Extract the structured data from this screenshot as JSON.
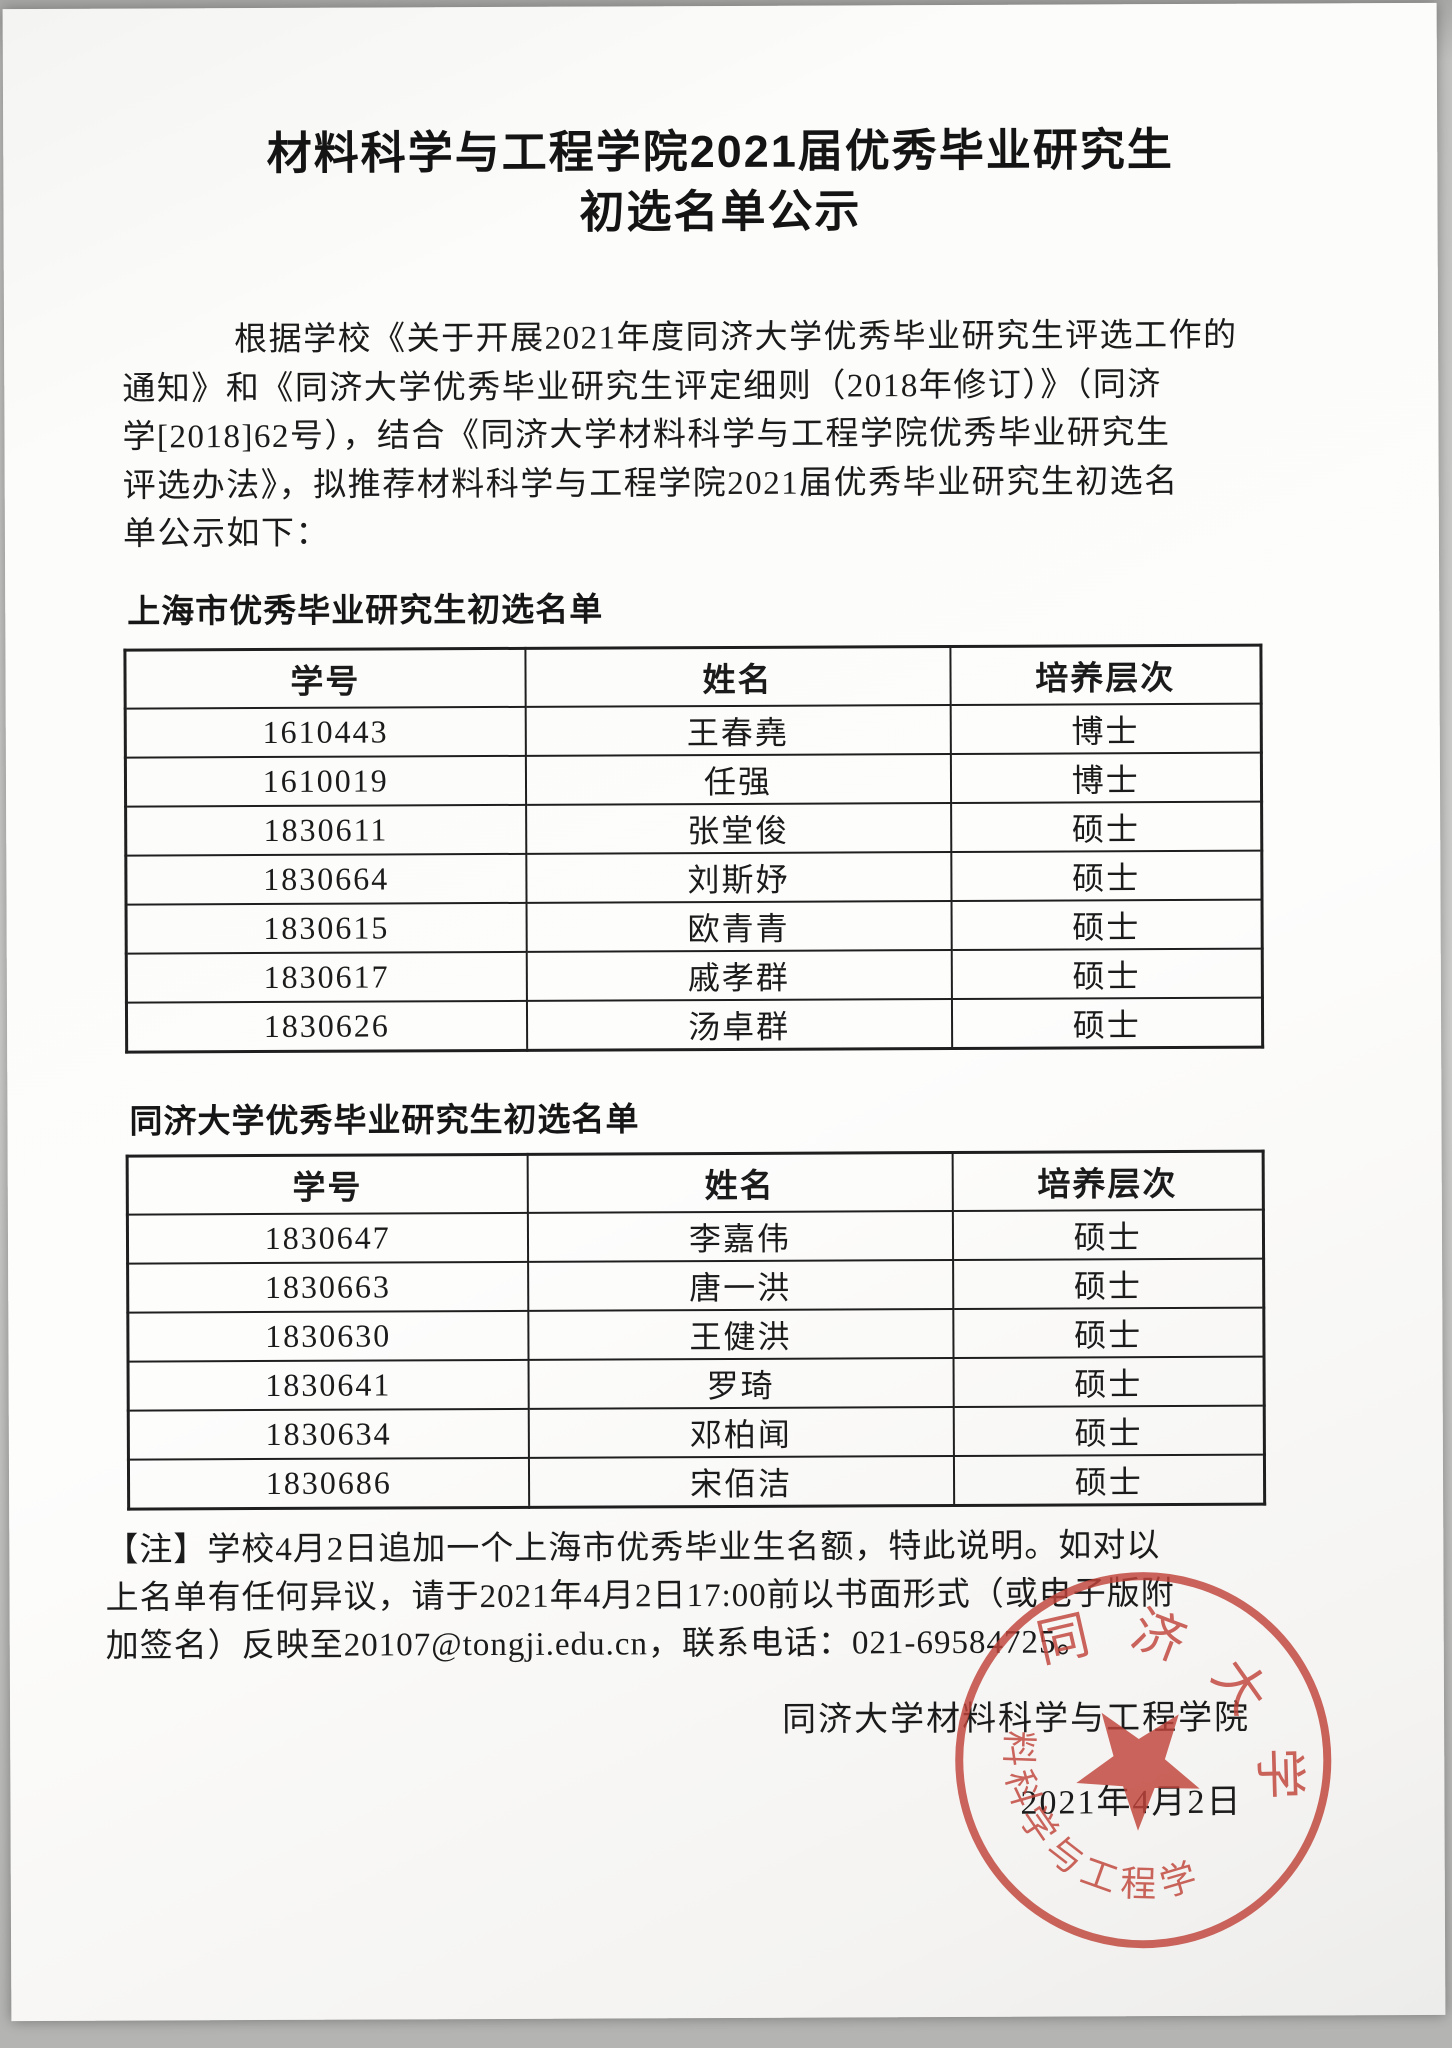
{
  "document": {
    "title_line1": "材料科学与工程学院2021届优秀毕业研究生",
    "title_line2": "初选名单公示",
    "intro_lines": [
      "根据学校《关于开展2021年度同济大学优秀毕业研究生评选工作的",
      "通知》和《同济大学优秀毕业研究生评定细则（2018年修订）》（同济",
      "学[2018]62号），结合《同济大学材料科学与工程学院优秀毕业研究生",
      "评选办法》，拟推荐材料科学与工程学院2021届优秀毕业研究生初选名",
      "单公示如下："
    ]
  },
  "tables": [
    {
      "section_title": "上海市优秀毕业研究生初选名单",
      "headers": [
        "学号",
        "姓名",
        "培养层次"
      ],
      "rows": [
        [
          "1610443",
          "王春堯",
          "博士"
        ],
        [
          "1610019",
          "任强",
          "博士"
        ],
        [
          "1830611",
          "张堂俊",
          "硕士"
        ],
        [
          "1830664",
          "刘斯妤",
          "硕士"
        ],
        [
          "1830615",
          "欧青青",
          "硕士"
        ],
        [
          "1830617",
          "戚孝群",
          "硕士"
        ],
        [
          "1830626",
          "汤卓群",
          "硕士"
        ]
      ]
    },
    {
      "section_title": "同济大学优秀毕业研究生初选名单",
      "headers": [
        "学号",
        "姓名",
        "培养层次"
      ],
      "rows": [
        [
          "1830647",
          "李嘉伟",
          "硕士"
        ],
        [
          "1830663",
          "唐一洪",
          "硕士"
        ],
        [
          "1830630",
          "王健洪",
          "硕士"
        ],
        [
          "1830641",
          "罗琦",
          "硕士"
        ],
        [
          "1830634",
          "邓柏闻",
          "硕士"
        ],
        [
          "1830686",
          "宋佰洁",
          "硕士"
        ]
      ]
    }
  ],
  "note_lines": [
    "【注】学校4月2日追加一个上海市优秀毕业生名额，特此说明。如对以",
    "上名单有任何异议，请于2021年4月2日17:00前以书面形式（或电子版附",
    "加签名）反映至20107@tongji.edu.cn，联系电话：021-69584725。"
  ],
  "signature": {
    "org": "同济大学材料科学与工程学院",
    "date": "2021年4月2日"
  },
  "stamp": {
    "text_top": "同济大学",
    "text_bottom": "材料科学与工程学院",
    "color": "#c0443a"
  }
}
